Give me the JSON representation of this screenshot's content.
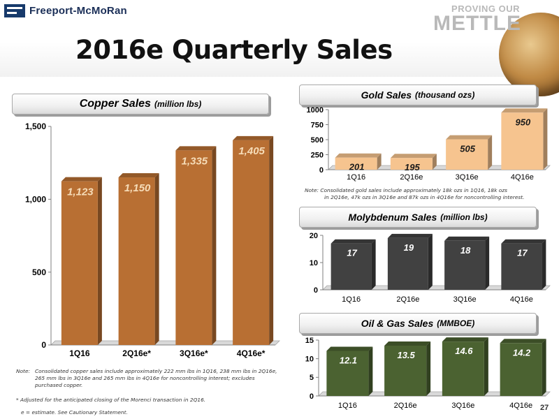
{
  "header": {
    "logo_text": "Freeport-McMoRan",
    "tagline_small": "PROVING OUR",
    "tagline_big": "METTLE",
    "title": "2016e Quarterly Sales"
  },
  "panels": {
    "copper": {
      "title": "Copper Sales",
      "unit": "(million lbs)"
    },
    "gold": {
      "title": "Gold Sales",
      "unit": "(thousand ozs)"
    },
    "moly": {
      "title": "Molybdenum Sales",
      "unit": "(million lbs)"
    },
    "oil": {
      "title": "Oil & Gas Sales",
      "unit": "(MMBOE)"
    }
  },
  "notes": {
    "copper_label": "Note:",
    "copper_text": "Consolidated copper sales include approximately 222 mm lbs in 1Q16, 238 mm lbs in 2Q16e, 265 mm lbs in 3Q16e and 265 mm lbs in 4Q16e for noncontrolling interest; excludes purchased copper.",
    "copper_adjusted": "* Adjusted for the anticipated closing of the Morenci transaction in 2Q16.",
    "estimate": "e = estimate. See Cautionary Statement.",
    "gold_line1": "Note: Consolidated gold sales include approximately 18k ozs in 1Q16, 18k ozs",
    "gold_line2": "in 2Q16e, 47k ozs in 3Q16e and 87k ozs in 4Q16e for noncontrolling interest."
  },
  "page_number": "27",
  "colors": {
    "copper_bar": "#b86f33",
    "gold_bar": "#f6c48f",
    "moly_bar": "#414141",
    "oil_bar": "#4b6231",
    "copper_label": "#f6dcb8",
    "gold_label": "#1a1a1a",
    "moly_label": "#ffffff",
    "oil_label": "#ffffff"
  },
  "chart_data": [
    {
      "id": "copper",
      "type": "bar",
      "title": "Copper Sales (million lbs)",
      "categories": [
        "1Q16",
        "2Q16e*",
        "3Q16e*",
        "4Q16e*"
      ],
      "values": [
        1123,
        1150,
        1335,
        1405
      ],
      "labels": [
        "1,123",
        "1,150",
        "1,335",
        "1,405"
      ],
      "ylim": [
        0,
        1500
      ],
      "yticks": [
        0,
        500,
        1000,
        1500
      ],
      "ytick_labels": [
        "0",
        "500",
        "1,000",
        "1,500"
      ],
      "grid": false
    },
    {
      "id": "gold",
      "type": "bar",
      "title": "Gold Sales (thousand ozs)",
      "categories": [
        "1Q16",
        "2Q16e",
        "3Q16e",
        "4Q16e"
      ],
      "values": [
        201,
        195,
        505,
        950
      ],
      "labels": [
        "201",
        "195",
        "505",
        "950"
      ],
      "ylim": [
        0,
        1000
      ],
      "yticks": [
        0,
        250,
        500,
        750,
        1000
      ],
      "ytick_labels": [
        "0",
        "250",
        "500",
        "750",
        "1000"
      ],
      "grid": false
    },
    {
      "id": "moly",
      "type": "bar",
      "title": "Molybdenum Sales (million lbs)",
      "categories": [
        "1Q16",
        "2Q16e",
        "3Q16e",
        "4Q16e"
      ],
      "values": [
        17,
        19,
        18,
        17
      ],
      "labels": [
        "17",
        "19",
        "18",
        "17"
      ],
      "ylim": [
        0,
        20
      ],
      "yticks": [
        0,
        10,
        20
      ],
      "ytick_labels": [
        "0",
        "10",
        "20"
      ],
      "grid": false
    },
    {
      "id": "oil",
      "type": "bar",
      "title": "Oil & Gas Sales (MMBOE)",
      "categories": [
        "1Q16",
        "2Q16e",
        "3Q16e",
        "4Q16e"
      ],
      "values": [
        12.1,
        13.5,
        14.6,
        14.2
      ],
      "labels": [
        "12.1",
        "13.5",
        "14.6",
        "14.2"
      ],
      "ylim": [
        0,
        15
      ],
      "yticks": [
        0,
        5,
        10,
        15
      ],
      "ytick_labels": [
        "0",
        "5",
        "10",
        "15"
      ],
      "grid": false
    }
  ]
}
